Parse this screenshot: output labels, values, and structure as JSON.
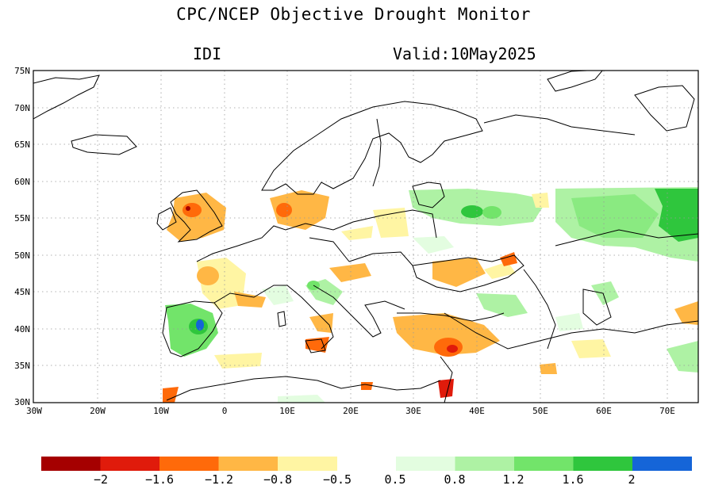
{
  "title": "CPC/NCEP Objective Drought Monitor",
  "index_label": "IDI",
  "valid_label": "Valid:10May2025",
  "lat_labels": [
    "75N",
    "70N",
    "65N",
    "60N",
    "55N",
    "50N",
    "45N",
    "40N",
    "35N",
    "30N"
  ],
  "lon_labels": [
    "30W",
    "20W",
    "10W",
    "0",
    "10E",
    "20E",
    "30E",
    "40E",
    "50E",
    "60E",
    "70E"
  ],
  "colorbar": {
    "dry_colors": [
      "#a50000",
      "#e01b0b",
      "#ff6a0a",
      "#ffb745",
      "#fff5a3"
    ],
    "wet_colors": [
      "#e3fde0",
      "#aef2a4",
      "#72e46a",
      "#2fc63d",
      "#1565d8"
    ],
    "labels": [
      "−2",
      "−1.6",
      "−1.2",
      "−0.8",
      "−0.5",
      "0.5",
      "0.8",
      "1.2",
      "1.6",
      "2"
    ]
  }
}
